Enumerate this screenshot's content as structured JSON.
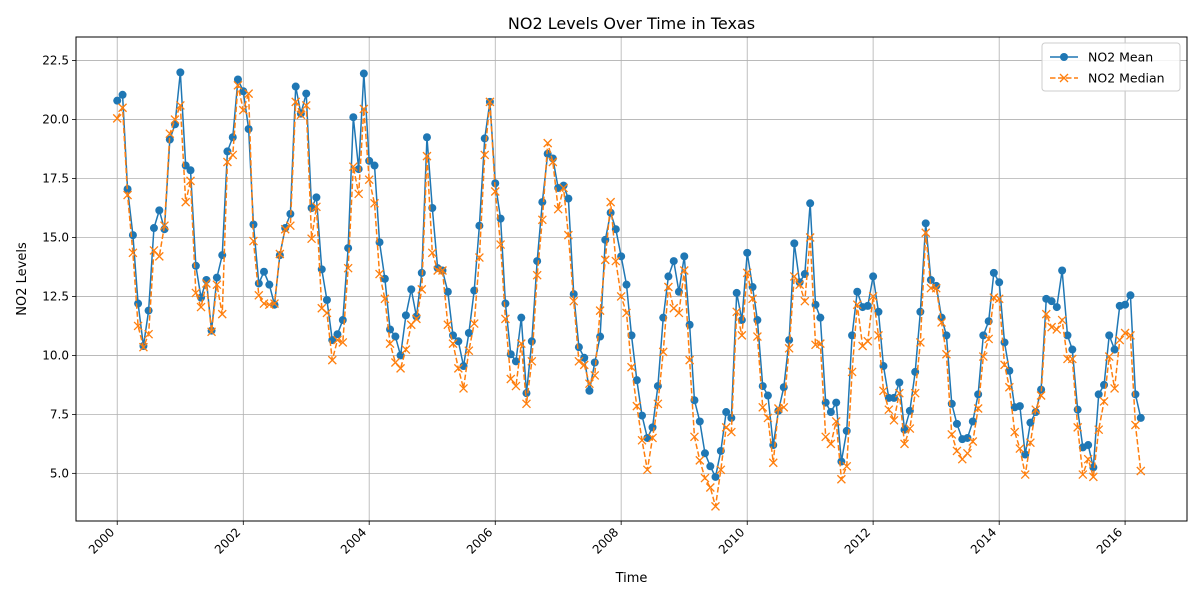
{
  "chart_data": {
    "type": "line",
    "title": "NO2 Levels Over Time in Texas",
    "xlabel": "Time",
    "ylabel": "NO2 Levels",
    "x_axis_type": "date",
    "xlim": [
      "1999-05-07",
      "2016-12-25"
    ],
    "ylim": [
      2.98,
      23.5
    ],
    "x_ticks": [
      "2000",
      "2002",
      "2004",
      "2006",
      "2008",
      "2010",
      "2012",
      "2014",
      "2016"
    ],
    "y_ticks": [
      "5.0",
      "7.5",
      "10.0",
      "12.5",
      "15.0",
      "17.5",
      "20.0",
      "22.5"
    ],
    "grid": true,
    "legend_position": "top-right",
    "x_start": "2000-01",
    "x_frequency": "monthly",
    "series": [
      {
        "name": "NO2 Mean",
        "color": "#1f77b4",
        "marker": "circle",
        "line_style": "solid",
        "values": [
          20.8,
          21.05,
          17.05,
          15.1,
          12.2,
          10.4,
          11.9,
          15.4,
          16.15,
          15.35,
          19.15,
          19.8,
          22.0,
          18.05,
          17.85,
          13.8,
          12.45,
          13.2,
          11.05,
          13.3,
          14.25,
          18.65,
          19.25,
          21.7,
          21.2,
          19.6,
          15.55,
          13.05,
          13.55,
          13.0,
          12.15,
          14.25,
          15.4,
          16.0,
          21.4,
          20.25,
          21.1,
          16.25,
          16.7,
          13.65,
          12.35,
          10.65,
          10.9,
          11.5,
          14.55,
          20.1,
          17.9,
          21.95,
          18.25,
          18.05,
          14.8,
          13.25,
          11.1,
          10.8,
          10.0,
          11.7,
          12.8,
          11.65,
          13.5,
          19.25,
          16.25,
          13.7,
          13.6,
          12.7,
          10.85,
          10.6,
          9.55,
          10.95,
          12.75,
          15.5,
          19.2,
          20.75,
          17.3,
          15.8,
          12.2,
          10.05,
          9.75,
          11.6,
          8.4,
          10.6,
          14.0,
          16.5,
          18.55,
          18.35,
          17.1,
          17.2,
          16.65,
          12.6,
          10.35,
          9.9,
          8.5,
          9.7,
          10.8,
          14.9,
          16.05,
          15.35,
          14.2,
          13.0,
          10.85,
          8.95,
          7.45,
          6.5,
          6.95,
          8.7,
          11.6,
          13.35,
          14.0,
          12.7,
          14.2,
          11.3,
          8.1,
          7.2,
          5.85,
          5.3,
          4.85,
          5.95,
          7.6,
          7.35,
          12.65,
          11.5,
          14.35,
          12.9,
          11.5,
          8.7,
          8.3,
          6.2,
          7.65,
          8.65,
          10.65,
          14.75,
          13.1,
          13.45,
          16.45,
          12.15,
          11.6,
          8.0,
          7.6,
          8.0,
          5.5,
          6.8,
          10.85,
          12.7,
          12.05,
          12.1,
          13.35,
          11.85,
          9.55,
          8.2,
          8.2,
          8.85,
          6.85,
          7.65,
          9.3,
          11.85,
          15.6,
          13.2,
          12.95,
          11.6,
          10.85,
          7.95,
          7.1,
          6.45,
          6.5,
          7.2,
          8.35,
          10.85,
          11.45,
          13.5,
          13.1,
          10.55,
          9.35,
          7.8,
          7.85,
          5.8,
          7.15,
          7.6,
          8.55,
          12.4,
          12.3,
          12.05,
          13.6,
          10.85,
          10.25,
          7.7,
          6.1,
          6.2,
          5.25,
          8.35,
          8.75,
          10.85,
          10.25,
          12.1,
          12.15,
          12.55,
          8.35,
          7.35
        ]
      },
      {
        "name": "NO2 Median",
        "color": "#ff7f0e",
        "marker": "x",
        "line_style": "dashed",
        "values": [
          20.05,
          20.5,
          16.8,
          14.35,
          11.25,
          10.35,
          10.9,
          14.45,
          14.2,
          15.5,
          19.4,
          20.0,
          20.6,
          16.5,
          17.4,
          12.65,
          12.05,
          13.05,
          11.0,
          13.0,
          11.75,
          18.2,
          18.5,
          21.45,
          20.4,
          21.1,
          14.85,
          12.55,
          12.2,
          12.15,
          12.2,
          14.3,
          15.35,
          15.5,
          20.75,
          20.2,
          20.6,
          14.95,
          16.3,
          12.0,
          11.8,
          9.8,
          10.65,
          10.55,
          13.7,
          18.0,
          16.85,
          20.45,
          17.45,
          16.45,
          13.45,
          12.4,
          10.5,
          9.7,
          9.45,
          10.25,
          11.3,
          11.55,
          12.8,
          18.45,
          14.35,
          13.6,
          13.6,
          11.3,
          10.5,
          9.45,
          8.6,
          10.2,
          11.35,
          14.15,
          18.5,
          20.75,
          16.95,
          14.7,
          11.55,
          9.0,
          8.7,
          10.5,
          7.95,
          9.75,
          13.4,
          15.75,
          19.0,
          18.2,
          16.2,
          17.1,
          15.1,
          12.3,
          9.75,
          9.6,
          8.8,
          9.15,
          11.9,
          14.05,
          16.5,
          14.0,
          12.5,
          11.8,
          9.5,
          7.85,
          6.4,
          5.15,
          6.5,
          7.95,
          10.15,
          12.9,
          12.0,
          11.8,
          13.6,
          9.8,
          6.55,
          5.55,
          4.8,
          4.4,
          3.6,
          5.15,
          6.95,
          6.75,
          11.85,
          10.85,
          13.5,
          12.4,
          10.8,
          7.8,
          7.35,
          5.45,
          7.75,
          7.8,
          10.3,
          13.35,
          13.0,
          12.3,
          15.0,
          10.45,
          10.5,
          6.55,
          6.25,
          7.2,
          4.75,
          5.3,
          9.3,
          12.15,
          10.4,
          10.6,
          12.5,
          10.85,
          8.5,
          7.7,
          7.25,
          8.4,
          6.25,
          6.9,
          8.4,
          10.55,
          15.2,
          12.85,
          12.85,
          11.4,
          10.05,
          6.65,
          5.95,
          5.6,
          5.85,
          6.35,
          7.75,
          9.95,
          10.7,
          12.45,
          12.4,
          9.6,
          8.65,
          6.75,
          6.05,
          4.95,
          6.3,
          7.7,
          8.3,
          11.75,
          11.2,
          11.1,
          11.5,
          9.85,
          9.85,
          6.95,
          4.95,
          5.6,
          4.85,
          6.85,
          8.05,
          9.95,
          8.6,
          10.65,
          10.95,
          10.85,
          7.05,
          5.1
        ]
      }
    ]
  }
}
